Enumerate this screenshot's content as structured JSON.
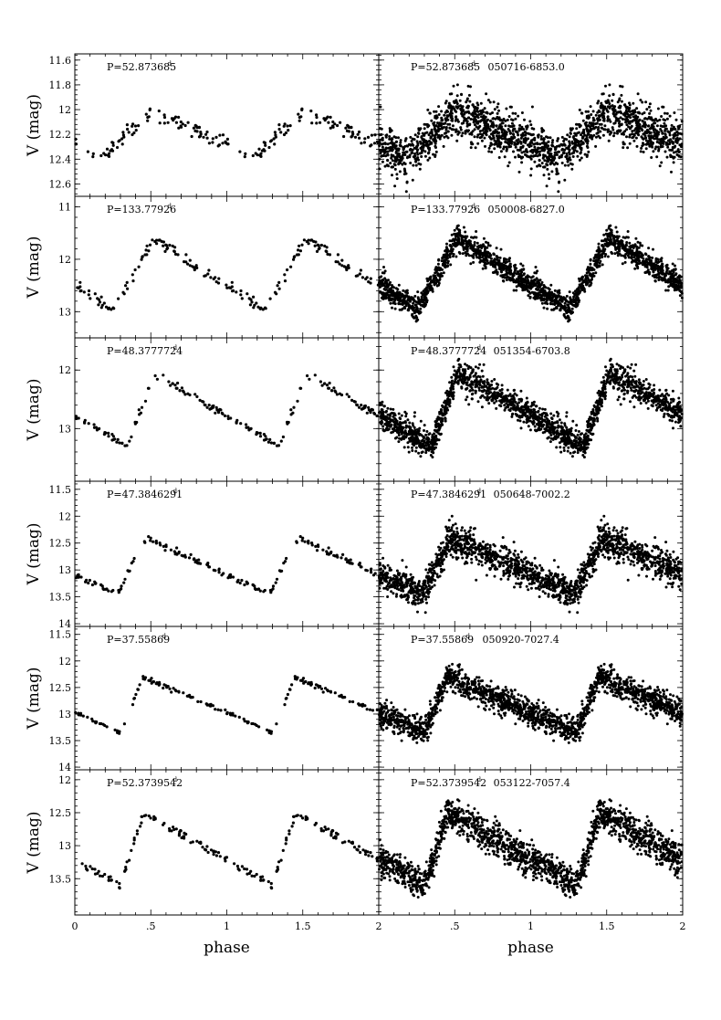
{
  "chart_data": [
    {
      "type": "scatter",
      "row": 0,
      "xlabel": "phase",
      "ylabel": "V (mag)",
      "xlim": [
        0,
        2
      ],
      "ylim": [
        12.7,
        11.55
      ],
      "y_inverted": true,
      "yticks": [
        "11.6",
        "11.8",
        "12",
        "12.2",
        "12.4",
        "12.6"
      ],
      "xticks": [
        "0",
        ".5",
        "1",
        "1.5",
        "2"
      ],
      "left_annotation": {
        "text": "P=52.873685",
        "sup": "d"
      },
      "right_annotation": {
        "text": "P=52.873685",
        "sup": "d",
        "star": "050716-6853.0"
      },
      "curve": {
        "min_mag": 12.38,
        "max_mag": 12.02,
        "rise_start": 0.18,
        "peak_phase": 0.5,
        "min_phase": 0.05
      },
      "left_scatter": 0.03,
      "right_scatter": 0.09
    },
    {
      "type": "scatter",
      "row": 1,
      "xlabel": "phase",
      "ylabel": "V (mag)",
      "xlim": [
        0,
        2
      ],
      "ylim": [
        13.5,
        10.8
      ],
      "y_inverted": true,
      "yticks": [
        "11",
        "12",
        "13"
      ],
      "xticks": [
        "0",
        ".5",
        "1",
        "1.5",
        "2"
      ],
      "left_annotation": {
        "text": "P=133.77926",
        "sup": "d"
      },
      "right_annotation": {
        "text": "P=133.77926",
        "sup": "d",
        "star": "050008-6827.0"
      },
      "curve": {
        "min_mag": 12.95,
        "max_mag": 11.6,
        "rise_start": 0.25,
        "peak_phase": 0.52,
        "min_phase": 0.22
      },
      "left_scatter": 0.06,
      "right_scatter": 0.12
    },
    {
      "type": "scatter",
      "row": 2,
      "xlabel": "phase",
      "ylabel": "V (mag)",
      "xlim": [
        0,
        2
      ],
      "ylim": [
        13.9,
        11.45
      ],
      "y_inverted": true,
      "yticks": [
        "12",
        "13"
      ],
      "xticks": [
        "0",
        ".5",
        "1",
        "1.5",
        "2"
      ],
      "left_annotation": {
        "text": "P=48.3777724",
        "sup": "d"
      },
      "right_annotation": {
        "text": "P=48.3777724",
        "sup": "d",
        "star": "051354-6703.8"
      },
      "curve": {
        "min_mag": 13.3,
        "max_mag": 12.05,
        "rise_start": 0.35,
        "peak_phase": 0.52,
        "min_phase": 0.32
      },
      "left_scatter": 0.03,
      "right_scatter": 0.12
    },
    {
      "type": "scatter",
      "row": 3,
      "xlabel": "phase",
      "ylabel": "V (mag)",
      "xlim": [
        0,
        2
      ],
      "ylim": [
        14.05,
        11.35
      ],
      "y_inverted": true,
      "yticks": [
        "11.5",
        "12",
        "12.5",
        "13",
        "13.5",
        "14"
      ],
      "xticks": [
        "0",
        ".5",
        "1",
        "1.5",
        "2"
      ],
      "left_annotation": {
        "text": "P=47.3846291",
        "sup": "d"
      },
      "right_annotation": {
        "text": "P=47.3846291",
        "sup": "d",
        "star": "050648-7002.2"
      },
      "curve": {
        "min_mag": 13.45,
        "max_mag": 12.4,
        "rise_start": 0.28,
        "peak_phase": 0.47,
        "min_phase": 0.22
      },
      "left_scatter": 0.03,
      "right_scatter": 0.15
    },
    {
      "type": "scatter",
      "row": 4,
      "xlabel": "phase",
      "ylabel": "V (mag)",
      "xlim": [
        0,
        2
      ],
      "ylim": [
        14.05,
        11.35
      ],
      "y_inverted": true,
      "yticks": [
        "11.5",
        "12",
        "12.5",
        "13",
        "13.5",
        "14"
      ],
      "xticks": [
        "0",
        ".5",
        "1",
        "1.5",
        "2"
      ],
      "left_annotation": {
        "text": "P=37.55869",
        "sup": "d"
      },
      "right_annotation": {
        "text": "P=37.55869",
        "sup": "d",
        "star": "050920-7027.4"
      },
      "curve": {
        "min_mag": 13.35,
        "max_mag": 12.3,
        "rise_start": 0.3,
        "peak_phase": 0.45,
        "min_phase": 0.25
      },
      "left_scatter": 0.02,
      "right_scatter": 0.12
    },
    {
      "type": "scatter",
      "row": 5,
      "xlabel": "phase",
      "ylabel": "V (mag)",
      "xlim": [
        0,
        2
      ],
      "ylim": [
        14.05,
        11.85
      ],
      "y_inverted": true,
      "yticks": [
        "12",
        "12.5",
        "13",
        "13.5"
      ],
      "xticks": [
        "0",
        ".5",
        "1",
        "1.5",
        "2"
      ],
      "left_annotation": {
        "text": "P=52.3739542",
        "sup": "d"
      },
      "right_annotation": {
        "text": "P=52.3739542",
        "sup": "d",
        "star": "053122-7057.4"
      },
      "curve": {
        "min_mag": 13.6,
        "max_mag": 12.5,
        "rise_start": 0.3,
        "peak_phase": 0.45,
        "min_phase": 0.22
      },
      "left_scatter": 0.03,
      "right_scatter": 0.12
    }
  ],
  "axis_titles": {
    "x": "phase",
    "y": "V (mag)"
  }
}
